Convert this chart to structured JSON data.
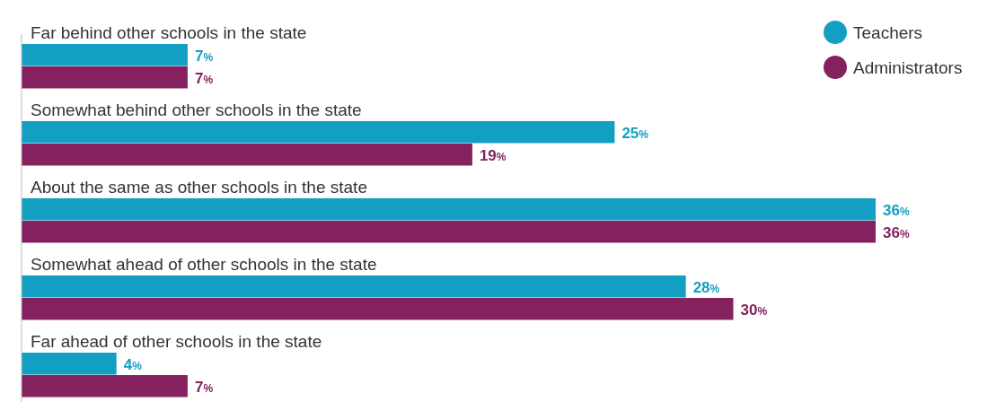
{
  "chart_data": {
    "type": "bar",
    "orientation": "horizontal",
    "categories": [
      "Far behind other schools in the state",
      "Somewhat behind other schools in the state",
      "About the same as other schools in the state",
      "Somewhat ahead of other schools in the state",
      "Far ahead of other schools in the state"
    ],
    "series": [
      {
        "name": "Teachers",
        "color": "#139fc2",
        "values": [
          7,
          25,
          36,
          28,
          4
        ],
        "value_labels": [
          "7%",
          "25%",
          "36%",
          "28%",
          "4%"
        ]
      },
      {
        "name": "Administrators",
        "color": "#86215f",
        "values": [
          7,
          19,
          36,
          30,
          7
        ],
        "value_labels": [
          "7%",
          "19%",
          "36%",
          "30%",
          "7%"
        ]
      }
    ],
    "legend": "top right"
  }
}
